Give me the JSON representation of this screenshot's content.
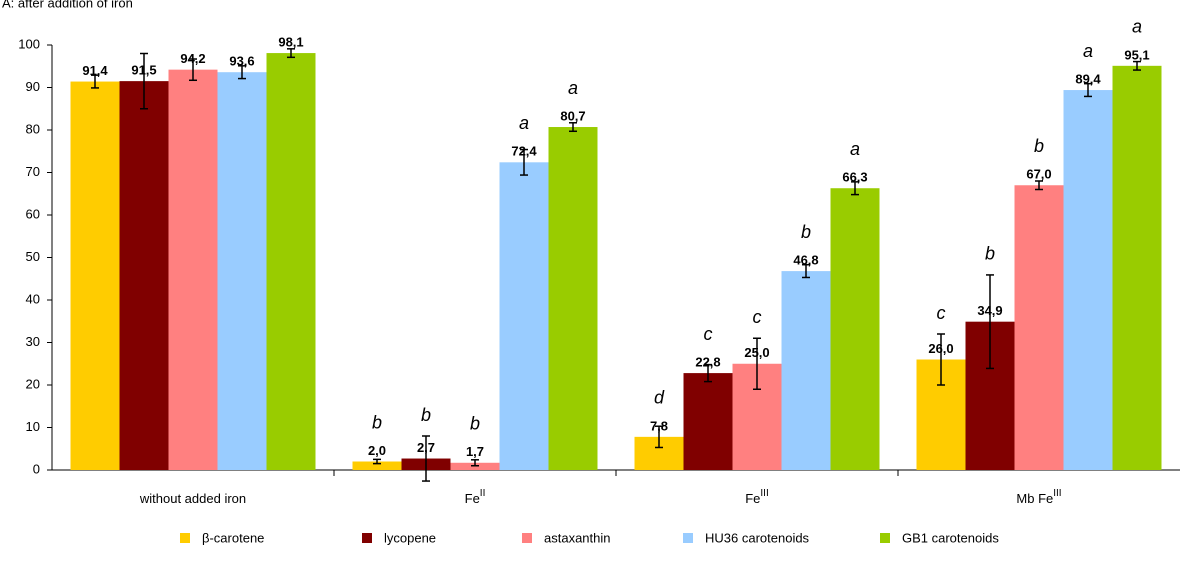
{
  "chart_data": {
    "type": "bar",
    "title": "A: after addition of iron",
    "categories": [
      "without added iron",
      "Fe",
      "Fe",
      "Mb Fe"
    ],
    "category_superscripts": [
      null,
      "II",
      "III",
      "III"
    ],
    "ylim": [
      0,
      100
    ],
    "yticks": [
      0,
      10,
      20,
      30,
      40,
      50,
      60,
      70,
      80,
      90,
      100
    ],
    "grid": false,
    "legend": "bottom",
    "series": [
      {
        "name": "β-carotene",
        "color": "#ffcc00",
        "values": [
          91.4,
          2.0,
          7.8,
          26.0
        ],
        "value_labels": [
          "91,4",
          "2,0",
          "7,8",
          "26,0"
        ],
        "errors": [
          1.5,
          0.5,
          2.5,
          6
        ],
        "letters": [
          null,
          "b",
          "d",
          "c"
        ]
      },
      {
        "name": "lycopene",
        "color": "#800000",
        "values": [
          91.5,
          2.7,
          22.8,
          34.9
        ],
        "value_labels": [
          "91,5",
          "2,7",
          "22,8",
          "34,9"
        ],
        "errors": [
          6.5,
          5.3,
          2,
          11
        ],
        "letters": [
          null,
          "b",
          "c",
          "b"
        ]
      },
      {
        "name": "astaxanthin",
        "color": "#ff8080",
        "values": [
          94.2,
          1.7,
          25.0,
          67.0
        ],
        "value_labels": [
          "94,2",
          "1,7",
          "25,0",
          "67,0"
        ],
        "errors": [
          2.5,
          0.7,
          6,
          1
        ],
        "letters": [
          null,
          "b",
          "c",
          "b"
        ]
      },
      {
        "name": "HU36 carotenoids",
        "color": "#99ccff",
        "values": [
          93.6,
          72.4,
          46.8,
          89.4
        ],
        "value_labels": [
          "93,6",
          "72,4",
          "46,8",
          "89,4"
        ],
        "errors": [
          1.5,
          3,
          1.5,
          1.5
        ],
        "letters": [
          null,
          "a",
          "b",
          "a"
        ]
      },
      {
        "name": "GB1 carotenoids",
        "color": "#99cc00",
        "values": [
          98.1,
          80.7,
          66.3,
          95.1
        ],
        "value_labels": [
          "98,1",
          "80,7",
          "66,3",
          "95,1"
        ],
        "errors": [
          1,
          1,
          1.5,
          1
        ],
        "letters": [
          null,
          "a",
          "a",
          "a"
        ]
      }
    ]
  }
}
